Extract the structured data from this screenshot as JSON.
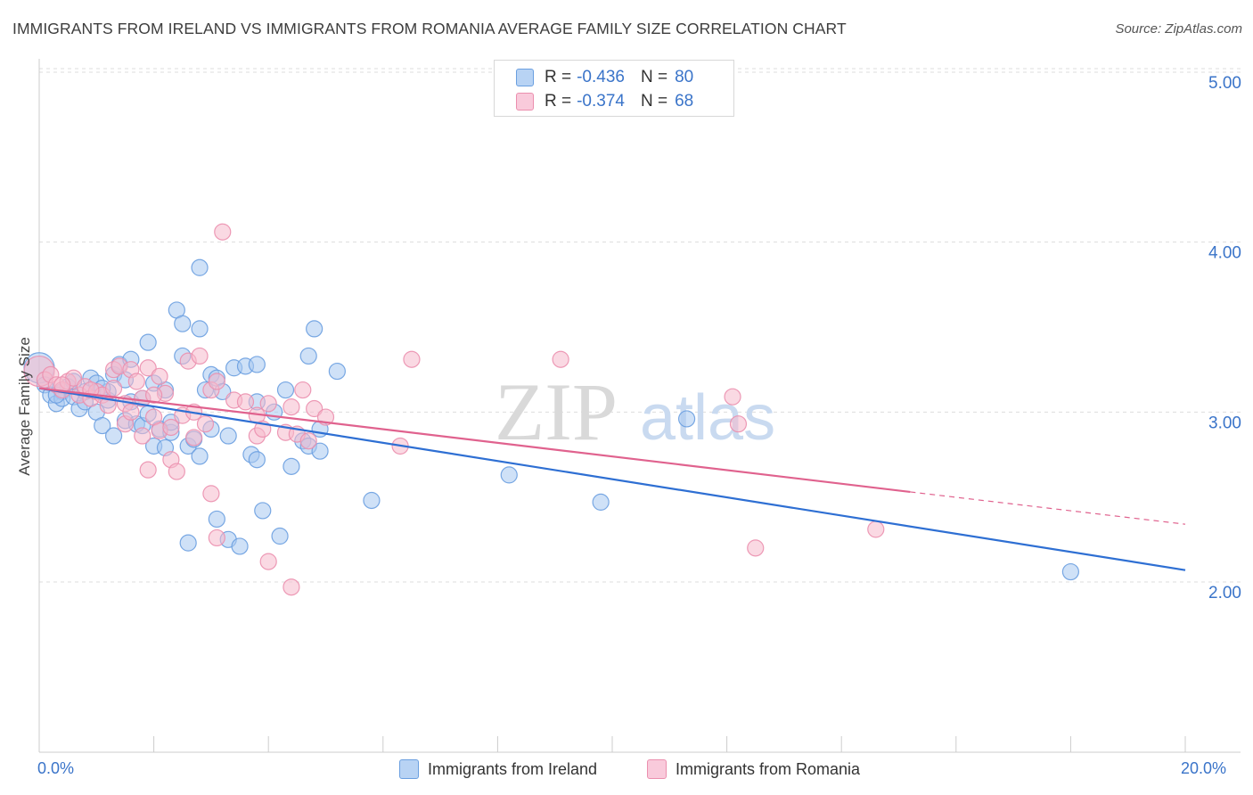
{
  "title": "IMMIGRANTS FROM IRELAND VS IMMIGRANTS FROM ROMANIA AVERAGE FAMILY SIZE CORRELATION CHART",
  "source": "Source: ZipAtlas.com",
  "watermark": {
    "zip": "ZIP",
    "atlas": "atlas"
  },
  "stats": {
    "ireland": {
      "r_label": "R =",
      "r_value": "-0.436",
      "n_label": "N =",
      "n_value": "80"
    },
    "romania": {
      "r_label": "R =",
      "r_value": "-0.374",
      "n_label": "N =",
      "n_value": "68"
    }
  },
  "colors": {
    "ireland_fill": "#a8c8f0",
    "ireland_stroke": "#6a9fe0",
    "ireland_line": "#2e6fd3",
    "romania_fill": "#f6b9cc",
    "romania_stroke": "#eb8fae",
    "romania_line": "#e0628e",
    "tick_text": "#3a74c9",
    "grid": "#dddddd"
  },
  "chart_data": {
    "type": "scatter",
    "title": "IMMIGRANTS FROM IRELAND VS IMMIGRANTS FROM ROMANIA AVERAGE FAMILY SIZE CORRELATION CHART",
    "xlabel": "",
    "ylabel": "Average Family Size",
    "xlim": [
      0,
      20
    ],
    "ylim": [
      1.0,
      5.1
    ],
    "x_tick_labels": [
      "0.0%",
      "20.0%"
    ],
    "y_ticks": [
      2.0,
      3.0,
      4.0,
      5.0
    ],
    "y_tick_labels": [
      "2.00",
      "3.00",
      "4.00",
      "5.00"
    ],
    "grid": true,
    "legend_position": "bottom",
    "series": [
      {
        "name": "Immigrants from Ireland",
        "points": [
          [
            0.0,
            3.26
          ],
          [
            0.1,
            3.16
          ],
          [
            0.2,
            3.1
          ],
          [
            0.3,
            3.05
          ],
          [
            0.4,
            3.12
          ],
          [
            0.4,
            3.08
          ],
          [
            0.5,
            3.15
          ],
          [
            0.6,
            3.09
          ],
          [
            0.7,
            3.02
          ],
          [
            0.8,
            3.12
          ],
          [
            0.8,
            3.06
          ],
          [
            0.9,
            3.2
          ],
          [
            1.0,
            3.17
          ],
          [
            1.0,
            3.0
          ],
          [
            1.1,
            2.92
          ],
          [
            1.2,
            3.07
          ],
          [
            1.2,
            3.12
          ],
          [
            1.3,
            3.22
          ],
          [
            1.3,
            2.86
          ],
          [
            1.4,
            3.28
          ],
          [
            1.5,
            3.19
          ],
          [
            1.5,
            2.95
          ],
          [
            1.6,
            3.06
          ],
          [
            1.6,
            3.31
          ],
          [
            1.7,
            2.93
          ],
          [
            1.8,
            3.08
          ],
          [
            1.8,
            2.92
          ],
          [
            1.9,
            2.99
          ],
          [
            1.9,
            3.41
          ],
          [
            2.0,
            3.17
          ],
          [
            2.0,
            2.8
          ],
          [
            2.1,
            2.9
          ],
          [
            2.2,
            3.13
          ],
          [
            2.2,
            2.79
          ],
          [
            2.3,
            2.88
          ],
          [
            2.3,
            2.94
          ],
          [
            2.4,
            3.6
          ],
          [
            2.5,
            3.52
          ],
          [
            2.5,
            3.33
          ],
          [
            2.6,
            2.23
          ],
          [
            2.6,
            2.8
          ],
          [
            2.7,
            2.84
          ],
          [
            2.8,
            2.74
          ],
          [
            2.8,
            3.49
          ],
          [
            2.8,
            3.85
          ],
          [
            2.9,
            3.13
          ],
          [
            3.0,
            2.9
          ],
          [
            3.0,
            3.22
          ],
          [
            3.1,
            3.2
          ],
          [
            3.1,
            2.37
          ],
          [
            3.2,
            3.12
          ],
          [
            3.3,
            2.86
          ],
          [
            3.3,
            2.25
          ],
          [
            3.4,
            3.26
          ],
          [
            3.5,
            2.21
          ],
          [
            3.6,
            3.27
          ],
          [
            3.7,
            2.75
          ],
          [
            3.8,
            2.72
          ],
          [
            3.8,
            3.28
          ],
          [
            3.8,
            3.06
          ],
          [
            3.9,
            2.42
          ],
          [
            4.1,
            3.0
          ],
          [
            4.2,
            2.27
          ],
          [
            4.3,
            3.13
          ],
          [
            4.4,
            2.68
          ],
          [
            4.6,
            2.83
          ],
          [
            4.7,
            2.8
          ],
          [
            4.7,
            3.33
          ],
          [
            4.8,
            3.49
          ],
          [
            4.9,
            2.77
          ],
          [
            4.9,
            2.9
          ],
          [
            5.2,
            3.24
          ],
          [
            5.8,
            2.48
          ],
          [
            8.2,
            2.63
          ],
          [
            9.8,
            2.47
          ],
          [
            11.3,
            2.96
          ],
          [
            18.0,
            2.06
          ],
          [
            0.3,
            3.1
          ],
          [
            0.6,
            3.18
          ],
          [
            1.1,
            3.14
          ]
        ]
      },
      {
        "name": "Immigrants from Romania",
        "points": [
          [
            0.0,
            3.24
          ],
          [
            0.1,
            3.19
          ],
          [
            0.2,
            3.22
          ],
          [
            0.3,
            3.16
          ],
          [
            0.4,
            3.13
          ],
          [
            0.5,
            3.18
          ],
          [
            0.6,
            3.2
          ],
          [
            0.7,
            3.1
          ],
          [
            0.8,
            3.15
          ],
          [
            0.9,
            3.08
          ],
          [
            1.0,
            3.12
          ],
          [
            1.1,
            3.1
          ],
          [
            1.2,
            3.04
          ],
          [
            1.3,
            3.25
          ],
          [
            1.3,
            3.14
          ],
          [
            1.4,
            3.27
          ],
          [
            1.5,
            3.05
          ],
          [
            1.5,
            2.93
          ],
          [
            1.6,
            3.25
          ],
          [
            1.7,
            3.18
          ],
          [
            1.8,
            2.86
          ],
          [
            1.8,
            3.08
          ],
          [
            1.9,
            3.26
          ],
          [
            1.9,
            2.66
          ],
          [
            2.0,
            2.97
          ],
          [
            2.1,
            3.21
          ],
          [
            2.1,
            2.89
          ],
          [
            2.2,
            3.11
          ],
          [
            2.3,
            2.72
          ],
          [
            2.3,
            2.91
          ],
          [
            2.4,
            2.65
          ],
          [
            2.5,
            2.98
          ],
          [
            2.6,
            3.3
          ],
          [
            2.7,
            3.0
          ],
          [
            2.7,
            2.85
          ],
          [
            2.8,
            3.33
          ],
          [
            2.9,
            2.93
          ],
          [
            3.0,
            3.13
          ],
          [
            3.0,
            2.52
          ],
          [
            3.1,
            3.18
          ],
          [
            3.1,
            2.26
          ],
          [
            3.2,
            4.06
          ],
          [
            3.4,
            3.07
          ],
          [
            3.6,
            3.06
          ],
          [
            3.8,
            2.98
          ],
          [
            3.8,
            2.86
          ],
          [
            3.9,
            2.9
          ],
          [
            4.0,
            3.05
          ],
          [
            4.0,
            2.12
          ],
          [
            4.3,
            2.88
          ],
          [
            4.4,
            3.03
          ],
          [
            4.4,
            1.97
          ],
          [
            4.5,
            2.87
          ],
          [
            4.6,
            3.13
          ],
          [
            4.7,
            2.83
          ],
          [
            4.8,
            3.02
          ],
          [
            5.0,
            2.97
          ],
          [
            6.3,
            2.8
          ],
          [
            6.5,
            3.31
          ],
          [
            9.1,
            3.31
          ],
          [
            12.1,
            3.09
          ],
          [
            12.2,
            2.93
          ],
          [
            12.5,
            2.2
          ],
          [
            14.6,
            2.31
          ],
          [
            0.4,
            3.16
          ],
          [
            0.9,
            3.13
          ],
          [
            2.0,
            3.1
          ],
          [
            1.6,
            3.0
          ]
        ]
      }
    ],
    "trendlines": [
      {
        "series": "Immigrants from Ireland",
        "x": [
          0.0,
          20.0
        ],
        "y": [
          3.14,
          2.07
        ]
      },
      {
        "series": "Immigrants from Romania",
        "x": [
          0.0,
          15.2
        ],
        "y": [
          3.14,
          2.53
        ],
        "dashed_extension": {
          "x": [
            15.2,
            20.0
          ],
          "y": [
            2.53,
            2.34
          ]
        }
      }
    ]
  },
  "legend": {
    "ireland_label": "Immigrants from Ireland",
    "romania_label": "Immigrants from Romania"
  }
}
